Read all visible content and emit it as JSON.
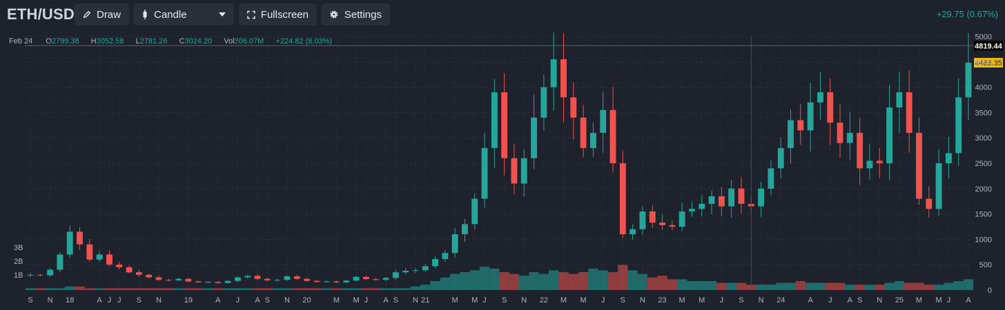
{
  "toolbar": {
    "symbol": "ETH/USD",
    "draw_label": "Draw",
    "chart_type_label": "Candle",
    "fullscreen_label": "Fullscreen",
    "settings_label": "Settings",
    "change": "+29.75 (0.67%)"
  },
  "legend": {
    "date": "Feb 24",
    "open_key": "O",
    "open": "2799.38",
    "high_key": "H",
    "high": "3052.58",
    "low_key": "L",
    "low": "2781.26",
    "close_key": "C",
    "close": "3024.20",
    "vol_key": "Vol",
    "vol": "306.07M",
    "change": "+224.82 (8.03%)"
  },
  "colors": {
    "up": "#26a69a",
    "down": "#ef5350",
    "background": "#1e222d",
    "accent_price": "#f0b90b"
  },
  "price_labels": {
    "high_marker": "4819.44",
    "last_price": "4483.35"
  },
  "chart_data": {
    "type": "candlestick",
    "price_axis_ticks": [
      "5000",
      "4500",
      "4000",
      "3500",
      "3000",
      "2500",
      "2000",
      "1500",
      "1000",
      "500",
      "0"
    ],
    "price_axis_values": [
      5000,
      4500,
      4000,
      3500,
      3000,
      2500,
      2000,
      1500,
      1000,
      500,
      0
    ],
    "ylim": [
      0,
      5000
    ],
    "volume_axis_ticks": [
      "3B",
      "2B",
      "1B"
    ],
    "volume_axis_values": [
      3000000000,
      2000000000,
      1000000000
    ],
    "x_ticks": [
      "S",
      "N",
      "18",
      "A",
      "J",
      "J",
      "S",
      "N",
      "19",
      "A",
      "J",
      "A",
      "S",
      "N",
      "20",
      "M",
      "M",
      "J",
      "A",
      "S",
      "N",
      "21",
      "M",
      "M",
      "J",
      "S",
      "N",
      "22",
      "M",
      "M",
      "J",
      "S",
      "N",
      "23",
      "M",
      "M",
      "J",
      "S",
      "N",
      "24",
      "A",
      "J",
      "A",
      "S",
      "N",
      "25",
      "M",
      "M",
      "J",
      "A"
    ],
    "x_tick_index": [
      0,
      2,
      4,
      7,
      8,
      9,
      11,
      13,
      16,
      19,
      21,
      23,
      24,
      26,
      28,
      31,
      33,
      34,
      36,
      37,
      39,
      40,
      43,
      45,
      46,
      48,
      50,
      52,
      54,
      56,
      58,
      60,
      62,
      64,
      66,
      68,
      70,
      72,
      74,
      76,
      79,
      81,
      83,
      84,
      86,
      88,
      90,
      92,
      93,
      95
    ],
    "x_start": "2017-09",
    "closes": [
      300,
      290,
      400,
      700,
      1150,
      900,
      600,
      700,
      500,
      450,
      350,
      300,
      250,
      200,
      190,
      220,
      170,
      150,
      160,
      140,
      180,
      250,
      280,
      220,
      190,
      200,
      270,
      220,
      180,
      160,
      170,
      150,
      185,
      260,
      215,
      200,
      240,
      350,
      380,
      390,
      470,
      610,
      730,
      1100,
      1300,
      1800,
      2800,
      3900,
      2600,
      2100,
      2600,
      3400,
      4000,
      4550,
      3800,
      3400,
      2800,
      3100,
      3550,
      2500,
      1100,
      1200,
      1550,
      1330,
      1280,
      1250,
      1550,
      1600,
      1700,
      1850,
      1650,
      2000,
      1700,
      1650,
      2000,
      2400,
      2800,
      3350,
      3150,
      3700,
      3900,
      3300,
      2900,
      3100,
      2400,
      2550,
      2500,
      3600,
      3900,
      3100,
      1800,
      1600,
      2500,
      2700,
      3800,
      4483
    ],
    "volume_relative": [
      1,
      1,
      1,
      1,
      2,
      2,
      1,
      1,
      1,
      1,
      1,
      1,
      1,
      1,
      1,
      1,
      1,
      1,
      1,
      1,
      1,
      1,
      1,
      1,
      1,
      1,
      1,
      1,
      1,
      1,
      1,
      1,
      1,
      1,
      1,
      1,
      1,
      1,
      1,
      2,
      3,
      5,
      7,
      9,
      10,
      11,
      13,
      12,
      10,
      9,
      8,
      10,
      9,
      11,
      10,
      9,
      10,
      12,
      11,
      10,
      14,
      11,
      9,
      7,
      8,
      6,
      6,
      5,
      5,
      5,
      4,
      4,
      4,
      3,
      3,
      3,
      4,
      4,
      5,
      4,
      4,
      4,
      4,
      3,
      3,
      3,
      3,
      4,
      5,
      4,
      4,
      3,
      3,
      4,
      5,
      6
    ]
  }
}
